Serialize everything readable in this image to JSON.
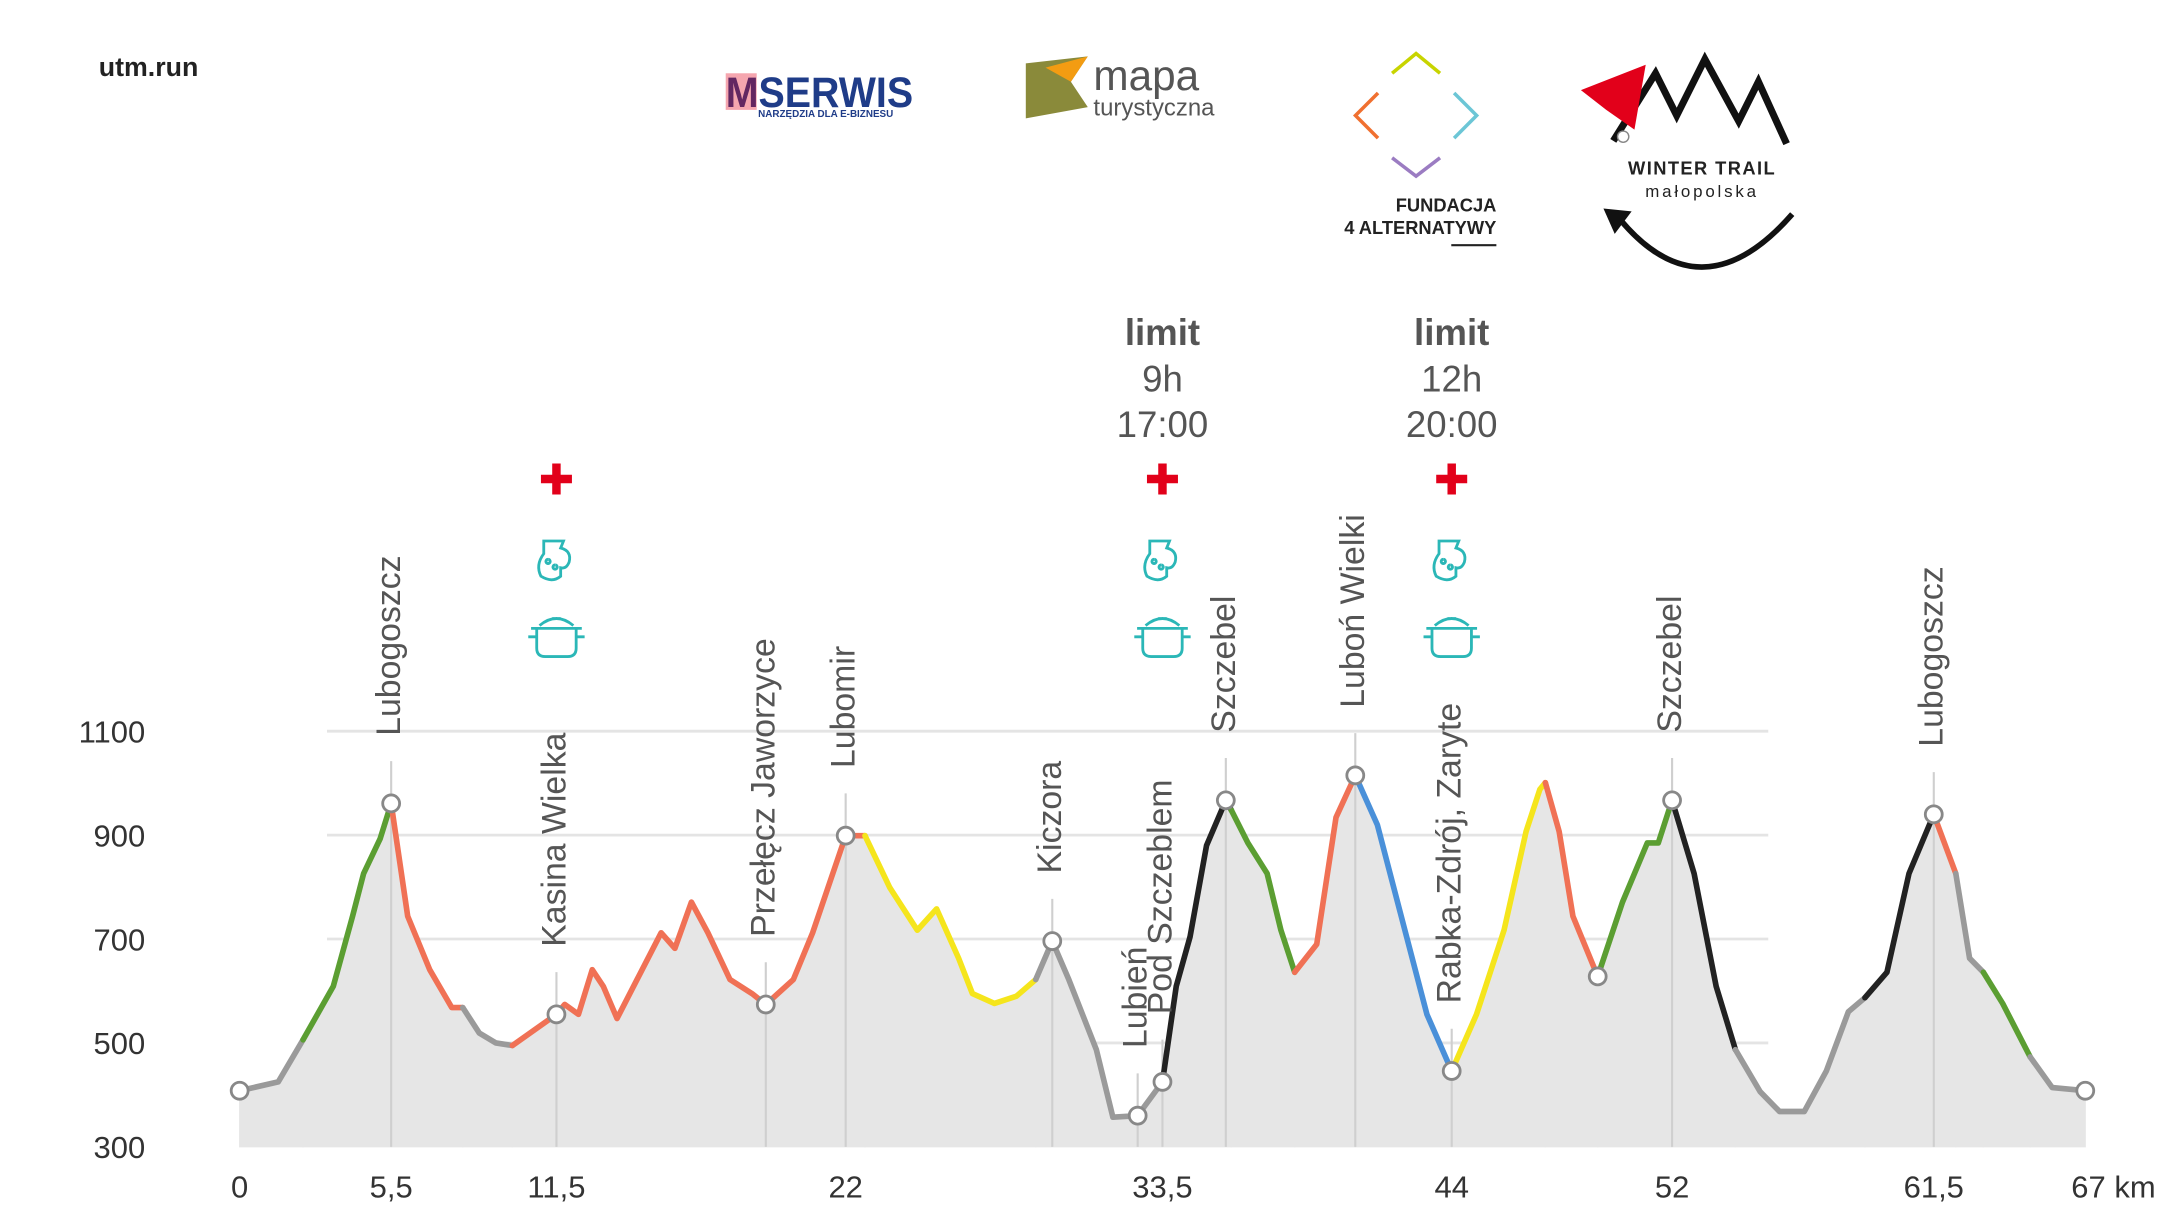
{
  "header": {
    "site": "utm.run"
  },
  "logos": {
    "mserwis": {
      "name": "MSERWIS",
      "tagline": "NARZĘDZIA DLA E-BIZNESU"
    },
    "mapa": {
      "line1": "mapa",
      "line2": "turystyczna"
    },
    "fundacja": {
      "line1": "FUNDACJA",
      "line2": "4 ALTERNATYWY"
    },
    "winter_trail": {
      "line1": "WINTER TRAIL",
      "line2": "małopolska"
    }
  },
  "chart_data": {
    "type": "elevation-profile",
    "xlim": [
      0,
      67
    ],
    "ylim": [
      300,
      1100
    ],
    "xticks": [
      0,
      {
        "value": 5.5,
        "label": "5,5"
      },
      {
        "value": 11.5,
        "label": "11,5"
      },
      22,
      {
        "value": 33.5,
        "label": "33,5"
      },
      44,
      52,
      {
        "value": 61.5,
        "label": "61,5"
      },
      {
        "value": 67,
        "label": "67 km"
      }
    ],
    "yticks": [
      300,
      500,
      700,
      900,
      1100
    ],
    "grid": true,
    "area_color": "#e6e6e6",
    "series": [
      {
        "color": "#9a9a9a",
        "x": [
          0,
          1.4,
          2.3
        ],
        "values": [
          408,
          425,
          506
        ]
      },
      {
        "color": "#5b9e32",
        "x": [
          2.3,
          3.4,
          4.1,
          4.5,
          5.1,
          5.5
        ],
        "values": [
          506,
          609,
          744,
          826,
          893,
          961
        ]
      },
      {
        "color": "#f07155",
        "x": [
          5.5,
          6.1,
          6.9,
          7.7,
          8.1
        ],
        "values": [
          961,
          744,
          641,
          568,
          568
        ]
      },
      {
        "color": "#9a9a9a",
        "x": [
          8.1,
          8.7,
          9.3,
          9.9
        ],
        "values": [
          568,
          519,
          500,
          495
        ]
      },
      {
        "color": "#f07155",
        "x": [
          9.9,
          11.5,
          11.8,
          12.3,
          12.8,
          13.2,
          13.7,
          14.3,
          15.3,
          15.8,
          16.4,
          17.0,
          17.8,
          18.6,
          19.1,
          20.1,
          20.8,
          22,
          22.7
        ],
        "values": [
          495,
          555,
          574,
          555,
          641,
          609,
          547,
          609,
          712,
          682,
          771,
          712,
          622,
          595,
          574,
          622,
          712,
          899,
          899
        ]
      },
      {
        "color": "#f5e51c",
        "x": [
          22.7,
          23.6,
          24.6,
          25.3,
          26.1,
          26.6,
          27.4,
          28.2,
          28.9
        ],
        "values": [
          899,
          799,
          717,
          758,
          663,
          595,
          576,
          590,
          622
        ]
      },
      {
        "color": "#9a9a9a",
        "x": [
          28.9,
          29.5,
          30.1,
          31.1,
          31.7,
          32.6,
          33.5
        ],
        "values": [
          622,
          696,
          622,
          487,
          357,
          360,
          425
        ]
      },
      {
        "color": "#222222",
        "x": [
          33.5,
          34.0,
          34.5,
          35.1,
          35.8,
          36.0
        ],
        "values": [
          425,
          609,
          704,
          880,
          967,
          948
        ]
      },
      {
        "color": "#5b9e32",
        "x": [
          36.0,
          36.6,
          37.3,
          37.8,
          38.3
        ],
        "values": [
          948,
          885,
          826,
          717,
          636
        ]
      },
      {
        "color": "#f07155",
        "x": [
          38.3,
          39.1,
          39.8,
          40.5
        ],
        "values": [
          636,
          690,
          934,
          1015
        ]
      },
      {
        "color": "#4a90d9",
        "x": [
          40.5,
          41.3,
          42.3,
          43.1,
          44
        ],
        "values": [
          1015,
          920,
          717,
          555,
          446
        ]
      },
      {
        "color": "#f5e51c",
        "x": [
          44,
          44.9,
          45.9,
          46.7,
          47.2,
          47.4
        ],
        "values": [
          446,
          555,
          717,
          907,
          988,
          1001
        ]
      },
      {
        "color": "#f07155",
        "x": [
          47.4,
          47.9,
          48.4,
          49.3
        ],
        "values": [
          1001,
          907,
          744,
          628
        ]
      },
      {
        "color": "#5b9e32",
        "x": [
          49.3,
          50.2,
          51.1,
          51.5,
          52
        ],
        "values": [
          628,
          771,
          885,
          885,
          967
        ]
      },
      {
        "color": "#222222",
        "x": [
          52,
          52.8,
          53.6,
          54.3
        ],
        "values": [
          967,
          826,
          609,
          487
        ]
      },
      {
        "color": "#9a9a9a",
        "x": [
          54.3,
          55.2,
          55.9,
          56.8,
          57.6,
          58.4,
          59.0
        ],
        "values": [
          487,
          406,
          368,
          368,
          446,
          560,
          587
        ]
      },
      {
        "color": "#222222",
        "x": [
          59.0,
          59.8,
          60.6,
          61.5
        ],
        "values": [
          587,
          636,
          826,
          940
        ]
      },
      {
        "color": "#f07155",
        "x": [
          61.5,
          62.3
        ],
        "values": [
          940,
          826
        ]
      },
      {
        "color": "#9a9a9a",
        "x": [
          62.3,
          62.8,
          63.3
        ],
        "values": [
          826,
          663,
          636
        ]
      },
      {
        "color": "#5b9e32",
        "x": [
          63.3,
          64.0,
          65.0
        ],
        "values": [
          636,
          576,
          473
        ]
      },
      {
        "color": "#9a9a9a",
        "x": [
          65.0,
          65.8,
          67
        ],
        "values": [
          473,
          414,
          408
        ]
      }
    ],
    "waypoints": [
      {
        "x": 0,
        "elevation": 408
      },
      {
        "label": "Lubogoszcz",
        "x": 5.5,
        "elevation": 961
      },
      {
        "label": "Kasina Wielka",
        "x": 11.5,
        "elevation": 555,
        "aid": true
      },
      {
        "label": "Przełęcz Jaworzyce",
        "x": 19.1,
        "elevation": 574
      },
      {
        "label": "Lubomir",
        "x": 22,
        "elevation": 899
      },
      {
        "label": "Kiczora",
        "x": 29.5,
        "elevation": 696
      },
      {
        "label": "Lubień",
        "x": 32.6,
        "elevation": 360
      },
      {
        "label": "Pod Szczeblem",
        "x": 33.5,
        "elevation": 425,
        "aid": true,
        "limit": {
          "title": "limit",
          "time": "9h",
          "clock": "17:00"
        }
      },
      {
        "label": "Szczebel",
        "x": 35.8,
        "elevation": 967
      },
      {
        "label": "Luboń Wielki",
        "x": 40.5,
        "elevation": 1015
      },
      {
        "label": "Rabka-Zdrój, Zaryte",
        "x": 44,
        "elevation": 446,
        "aid": true,
        "limit": {
          "title": "limit",
          "time": "12h",
          "clock": "20:00"
        }
      },
      {
        "x": 49.3,
        "elevation": 628
      },
      {
        "label": "Szczebel",
        "x": 52,
        "elevation": 967
      },
      {
        "label": "Lubogoszcz",
        "x": 61.5,
        "elevation": 940
      },
      {
        "x": 67,
        "elevation": 408
      }
    ]
  }
}
